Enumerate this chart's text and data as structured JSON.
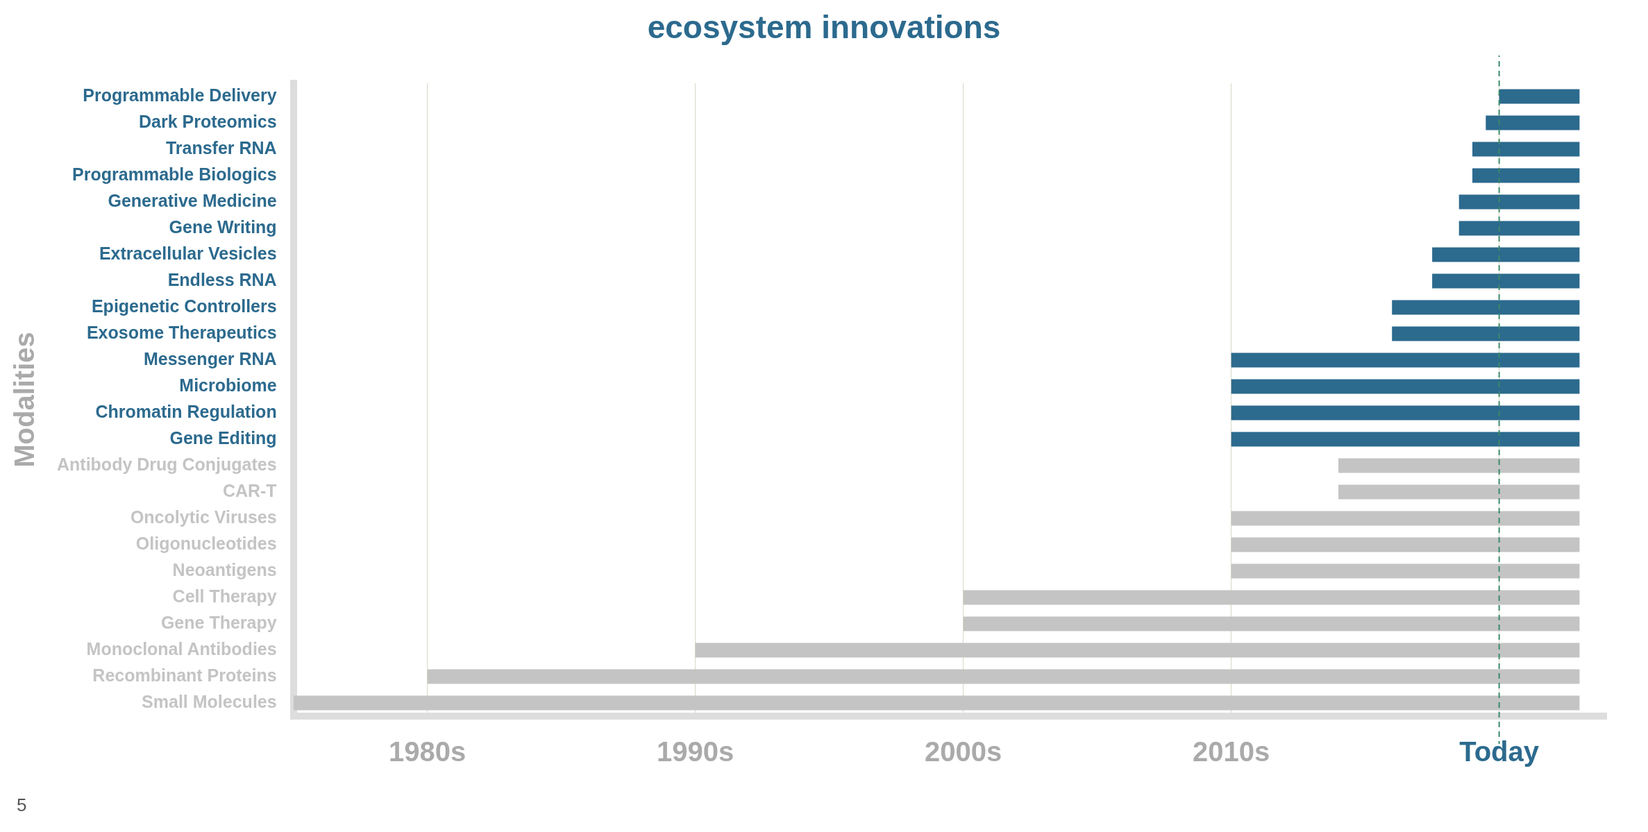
{
  "chart_data": {
    "type": "bar",
    "orientation": "horizontal",
    "title": "ecosystem innovations",
    "ylabel": "Modalities",
    "categories": [
      "Programmable Delivery",
      "Dark Proteomics",
      "Transfer RNA",
      "Programmable Biologics",
      "Generative Medicine",
      "Gene Writing",
      "Extracellular Vesicles",
      "Endless RNA",
      "Epigenetic Controllers",
      "Exosome Therapeutics",
      "Messenger RNA",
      "Microbiome",
      "Chromatin Regulation",
      "Gene Editing",
      "Antibody Drug Conjugates",
      "CAR-T",
      "Oncolytic Viruses",
      "Oligonucleotides",
      "Neoantigens",
      "Cell Therapy",
      "Gene Therapy",
      "Monoclonal Antibodies",
      "Recombinant Proteins",
      "Small Molecules"
    ],
    "base": [
      2020,
      2019.5,
      2019,
      2019,
      2018.5,
      2018.5,
      2017.5,
      2017.5,
      2016,
      2016,
      2010,
      2010,
      2010,
      2010,
      2014,
      2014,
      2010,
      2010,
      2010,
      2000,
      2000,
      1990,
      1980,
      1975
    ],
    "values": [
      3,
      3.5,
      4,
      4,
      4.5,
      4.5,
      5.5,
      5.5,
      7,
      7,
      13,
      13,
      13,
      13,
      9,
      9,
      13,
      13,
      13,
      23,
      23,
      33,
      43,
      48
    ],
    "colors": [
      "#2c6a8e",
      "#2c6a8e",
      "#2c6a8e",
      "#2c6a8e",
      "#2c6a8e",
      "#2c6a8e",
      "#2c6a8e",
      "#2c6a8e",
      "#2c6a8e",
      "#2c6a8e",
      "#2c6a8e",
      "#2c6a8e",
      "#2c6a8e",
      "#2c6a8e",
      "#c4c4c4",
      "#c4c4c4",
      "#c4c4c4",
      "#c4c4c4",
      "#c4c4c4",
      "#c4c4c4",
      "#c4c4c4",
      "#c4c4c4",
      "#c4c4c4",
      "#c4c4c4"
    ],
    "xlim": [
      1975,
      2024
    ],
    "xticks": [
      {
        "value": 1980,
        "label": "1980s"
      },
      {
        "value": 1990,
        "label": "1990s"
      },
      {
        "value": 2000,
        "label": "2000s"
      },
      {
        "value": 2010,
        "label": "2010s"
      },
      {
        "value": 2020,
        "label": "Today"
      }
    ],
    "grid": "x",
    "ref_lines": [
      {
        "axis": "x",
        "value": 2020,
        "color": "#3a8a6a",
        "line_style": "dashed"
      }
    ],
    "annotations": [
      "5"
    ]
  }
}
